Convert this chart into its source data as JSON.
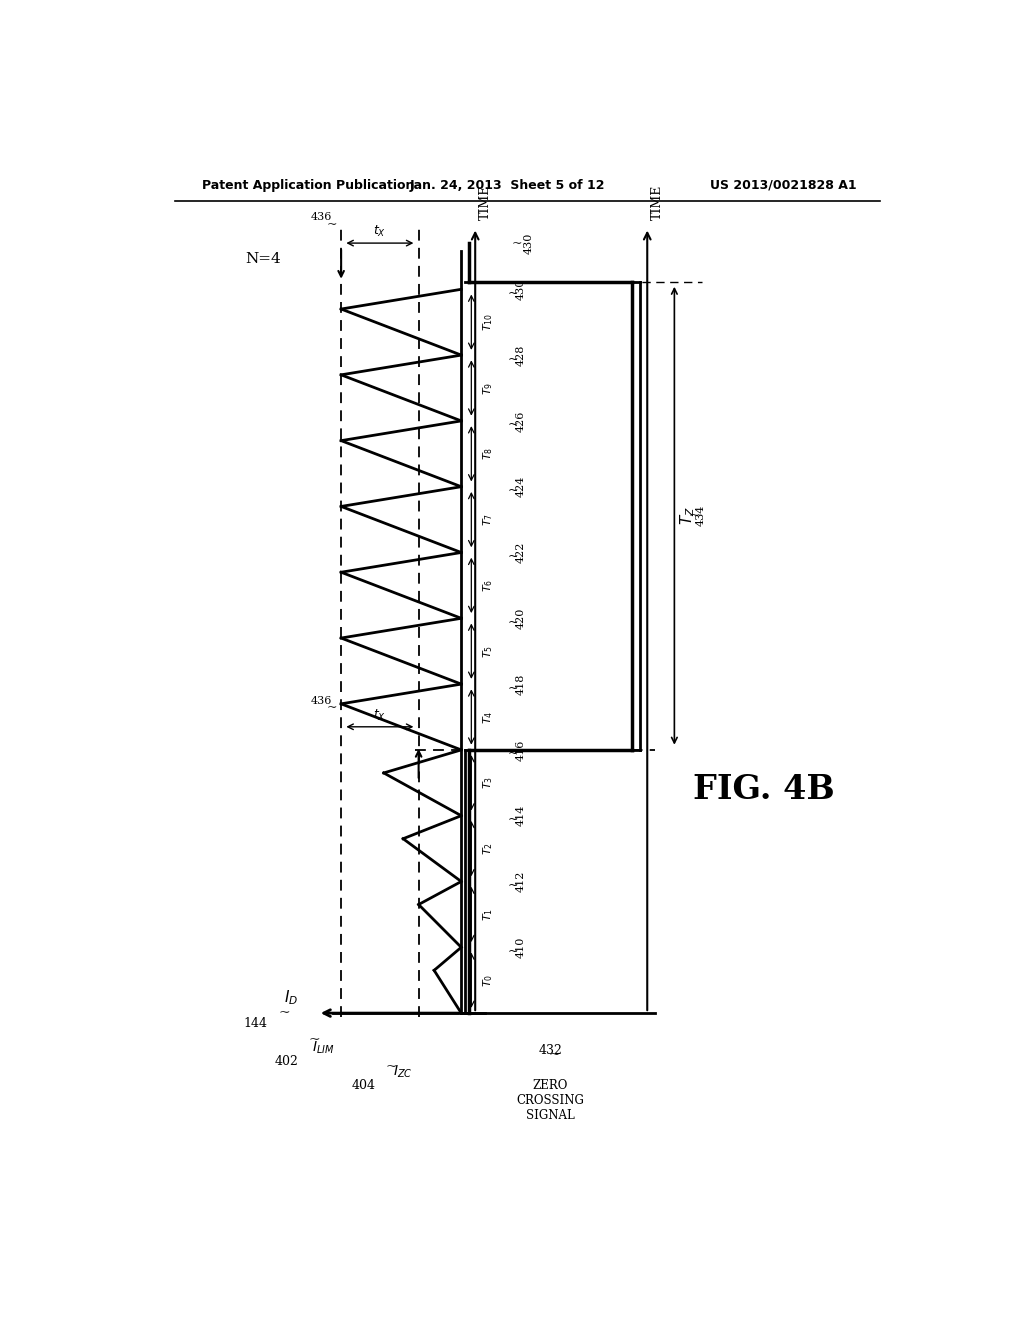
{
  "header_left": "Patent Application Publication",
  "header_mid": "Jan. 24, 2013  Sheet 5 of 12",
  "header_right": "US 2013/0021828 A1",
  "fig_label": "FIG. 4B",
  "background": "#ffffff",
  "n4_label": "N=4",
  "id_label": "I_D",
  "ilim_label": "I_LIM",
  "izc_label": "I_ZC",
  "ref_144": "144",
  "ref_402": "402",
  "ref_404": "404",
  "ref_432": "432",
  "ref_434": "434",
  "ref_436_1": "436",
  "ref_436_2": "436",
  "ref_430": "430",
  "tx_label": "tx",
  "tz_label": "T_Z",
  "time_label": "TIME",
  "zero_crossing_label": "ZERO\nCROSSING\nSIGNAL",
  "t_labels": [
    "T0",
    "T1",
    "T2",
    "T3",
    "T4",
    "T5",
    "T6",
    "T7",
    "T8",
    "T9",
    "T10"
  ],
  "ref_labels": [
    "410",
    "412",
    "414",
    "416",
    "418",
    "420",
    "422",
    "424",
    "426",
    "428",
    "430"
  ],
  "pulse_count_before": 4,
  "pulse_count_after": 7
}
